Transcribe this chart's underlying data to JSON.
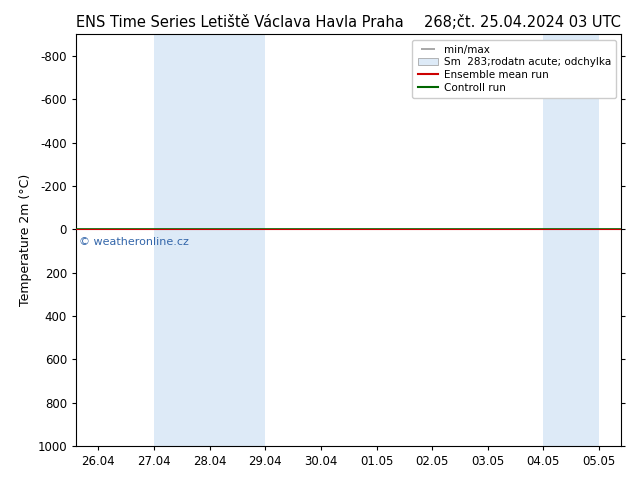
{
  "title_left": "ENS Time Series Letiště Václava Havla Praha",
  "title_right": "268;čt. 25.04.2024 03 UTC",
  "ylabel": "Temperature 2m (°C)",
  "watermark": "© weatheronline.cz",
  "ylim_bottom": 1000,
  "ylim_top": -900,
  "yticks": [
    -800,
    -600,
    -400,
    -200,
    0,
    200,
    400,
    600,
    800,
    1000
  ],
  "x_tick_labels": [
    "26.04",
    "27.04",
    "28.04",
    "29.04",
    "30.04",
    "01.05",
    "02.05",
    "03.05",
    "04.05",
    "05.05"
  ],
  "x_tick_positions": [
    0,
    1,
    2,
    3,
    4,
    5,
    6,
    7,
    8,
    9
  ],
  "shade_regions": [
    {
      "x_start": 1,
      "x_end": 3,
      "color": "#ddeaf7"
    },
    {
      "x_start": 8,
      "x_end": 9,
      "color": "#ddeaf7"
    }
  ],
  "hline_y": 0,
  "ensemble_mean_color": "#cc0000",
  "control_run_color": "#006600",
  "legend_items": [
    {
      "label": "min/max",
      "color": "#aaaaaa",
      "type": "errorbar"
    },
    {
      "label": "Sm  283;rodatn acute; odchylka",
      "color": "#ddeaf7",
      "type": "bar"
    },
    {
      "label": "Ensemble mean run",
      "color": "#cc0000",
      "type": "line"
    },
    {
      "label": "Controll run",
      "color": "#006600",
      "type": "line"
    }
  ],
  "bg_color": "#ffffff",
  "plot_bg_color": "#ffffff",
  "border_color": "#000000",
  "title_fontsize": 10.5,
  "axis_fontsize": 9,
  "tick_fontsize": 8.5,
  "watermark_color": "#3366aa",
  "watermark_fontsize": 8,
  "legend_fontsize": 7.5
}
